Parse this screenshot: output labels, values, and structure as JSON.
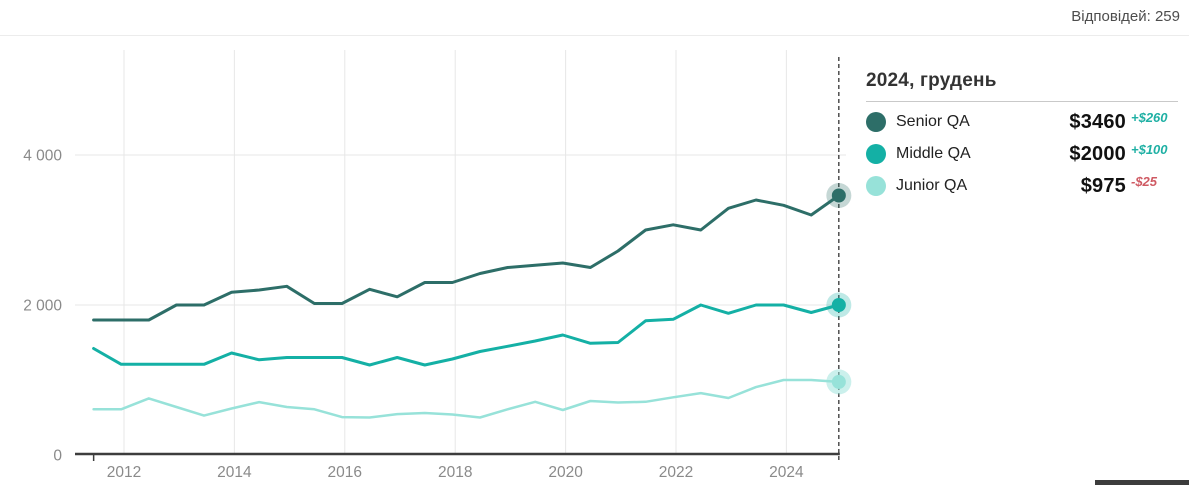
{
  "header": {
    "responses": "Відповідей: 259"
  },
  "legend": {
    "title": "2024, грудень",
    "items": [
      {
        "label": "Senior QA",
        "value": "$3460",
        "delta": "+$260",
        "direction": "up"
      },
      {
        "label": "Middle QA",
        "value": "$2000",
        "delta": "+$100",
        "direction": "up"
      },
      {
        "label": "Junior QA",
        "value": "$975",
        "delta": "-$25",
        "direction": "down"
      }
    ]
  },
  "colors": {
    "delta_up": "#1fb0a4",
    "delta_down": "#cf5a63",
    "axis": "#3d3d3d",
    "grid": "#e7e7e7",
    "tick_text": "#8a8a8a",
    "dashed_marker": "#222222"
  },
  "chart_data": {
    "type": "line",
    "title": "2024, грудень",
    "xlabel": "",
    "ylabel": "",
    "grid": true,
    "legend_position": "right",
    "ylim": [
      0,
      5400
    ],
    "x_labels": [
      "2011-06",
      "2011-12",
      "2012-06",
      "2012-12",
      "2013-06",
      "2013-12",
      "2014-06",
      "2014-12",
      "2015-06",
      "2015-12",
      "2016-06",
      "2016-12",
      "2017-06",
      "2017-12",
      "2018-06",
      "2018-12",
      "2019-06",
      "2019-12",
      "2020-06",
      "2020-12",
      "2021-06",
      "2021-12",
      "2022-06",
      "2022-12",
      "2023-06",
      "2023-12",
      "2024-06",
      "2024-12"
    ],
    "x": [
      2011.45,
      2011.95,
      2012.45,
      2012.95,
      2013.45,
      2013.95,
      2014.45,
      2014.95,
      2015.45,
      2015.95,
      2016.45,
      2016.95,
      2017.45,
      2017.95,
      2018.45,
      2018.95,
      2019.45,
      2019.95,
      2020.45,
      2020.95,
      2021.45,
      2021.95,
      2022.45,
      2022.95,
      2023.45,
      2023.95,
      2024.45,
      2024.95
    ],
    "series": [
      {
        "name": "Senior QA",
        "color": "#2d6e68",
        "stroke_width": 3,
        "halo_opacity": 0.28,
        "values": [
          1800,
          1800,
          1800,
          2000,
          2000,
          2170,
          2200,
          2250,
          2020,
          2020,
          2210,
          2110,
          2300,
          2300,
          2420,
          2500,
          2530,
          2560,
          2500,
          2720,
          3000,
          3070,
          3000,
          3290,
          3400,
          3330,
          3200,
          3460
        ]
      },
      {
        "name": "Middle QA",
        "color": "#14b0a5",
        "stroke_width": 3,
        "halo_opacity": 0.28,
        "values": [
          1420,
          1210,
          1210,
          1210,
          1210,
          1360,
          1270,
          1300,
          1300,
          1300,
          1200,
          1300,
          1200,
          1280,
          1380,
          1450,
          1520,
          1600,
          1490,
          1500,
          1790,
          1810,
          2000,
          1890,
          2000,
          2000,
          1900,
          2000
        ]
      },
      {
        "name": "Junior QA",
        "color": "#97e2d9",
        "stroke_width": 2.5,
        "halo_opacity": 0.5,
        "values": [
          610,
          610,
          755,
          640,
          525,
          620,
          705,
          640,
          610,
          505,
          500,
          545,
          560,
          540,
          500,
          610,
          710,
          600,
          720,
          700,
          710,
          770,
          825,
          760,
          905,
          1000,
          1000,
          975
        ]
      }
    ],
    "yticks": [
      {
        "value": 0,
        "label": "0"
      },
      {
        "value": 2000,
        "label": "2 000"
      },
      {
        "value": 4000,
        "label": "4 000"
      }
    ],
    "xticks": [
      {
        "value": 2012,
        "label": "2012"
      },
      {
        "value": 2014,
        "label": "2014"
      },
      {
        "value": 2016,
        "label": "2016"
      },
      {
        "value": 2018,
        "label": "2018"
      },
      {
        "value": 2020,
        "label": "2020"
      },
      {
        "value": 2022,
        "label": "2022"
      },
      {
        "value": 2024,
        "label": "2024"
      }
    ],
    "marker_x": 2024.95
  }
}
